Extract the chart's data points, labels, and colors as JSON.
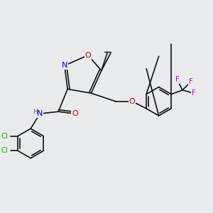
{
  "background_color": "#e8eaec",
  "fig_width": 3.0,
  "fig_height": 3.0,
  "dpi": 100,
  "atom_colors": {
    "C": "#000000",
    "N": "#0000cc",
    "O": "#cc0000",
    "Cl": "#00aa00",
    "F": "#cc00cc",
    "H": "#555555"
  },
  "bond_color": "#111111",
  "bond_width": 1.2,
  "font_size_atoms": 8.0,
  "font_size_small": 6.5
}
